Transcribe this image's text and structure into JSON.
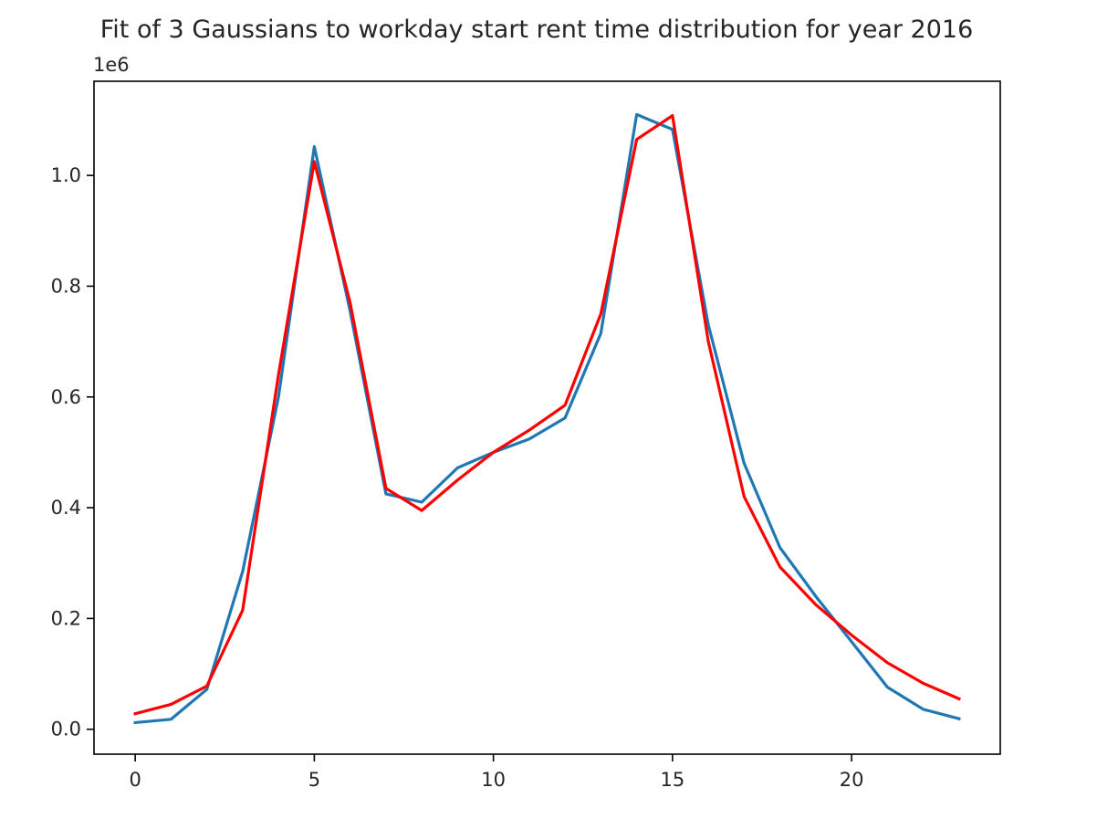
{
  "chart_data": {
    "type": "line",
    "title": "Fit of 3 Gaussians to workday start rent time distribution for year 2016",
    "xlabel": "",
    "ylabel": "",
    "y_offset_label": "1e6",
    "x": [
      0,
      1,
      2,
      3,
      4,
      5,
      6,
      7,
      8,
      9,
      10,
      11,
      12,
      13,
      14,
      15,
      16,
      17,
      18,
      19,
      20,
      21,
      22,
      23
    ],
    "series": [
      {
        "color": "#1f77b4",
        "values": [
          12000,
          18000,
          72000,
          285000,
          600000,
          1052000,
          755000,
          425000,
          410000,
          472000,
          500000,
          524000,
          562000,
          715000,
          1110000,
          1083000,
          730000,
          480000,
          328000,
          240000,
          158000,
          76000,
          36000,
          19000
        ]
      },
      {
        "color": "#ff0000",
        "values": [
          28000,
          45000,
          78000,
          215000,
          640000,
          1025000,
          770000,
          435000,
          395000,
          450000,
          500000,
          540000,
          585000,
          750000,
          1065000,
          1108000,
          700000,
          420000,
          293000,
          225000,
          170000,
          120000,
          83000,
          55000
        ]
      }
    ],
    "xlim": [
      -1.15,
      24.15
    ],
    "ylim": [
      -45000,
      1170000
    ],
    "x_ticks": [
      0,
      5,
      10,
      15,
      20
    ],
    "x_tick_labels": [
      "0",
      "5",
      "10",
      "15",
      "20"
    ],
    "y_ticks": [
      0,
      200000,
      400000,
      600000,
      800000,
      1000000
    ],
    "y_tick_labels": [
      "0.0",
      "0.2",
      "0.4",
      "0.6",
      "0.8",
      "1.0"
    ],
    "grid": false,
    "legend": "none"
  }
}
